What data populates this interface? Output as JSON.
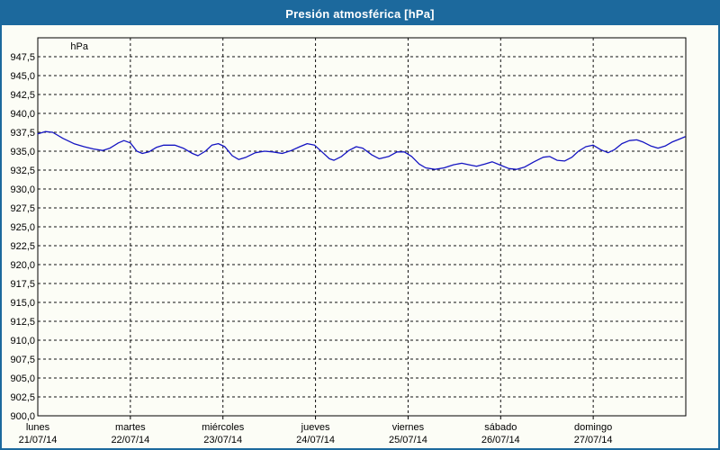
{
  "title_bar": {
    "text": "Presión atmosférica [hPa]",
    "bg_color": "#1c699d",
    "text_color": "#ffffff"
  },
  "colors": {
    "frame_border": "#1c699d",
    "plot_border": "#000000",
    "gridline": "#111111",
    "line": "#1414c2",
    "background": "#fcfdf6",
    "label_text": "#000000"
  },
  "chart_data": {
    "type": "line",
    "title": "Presión atmosférica [hPa]",
    "unit_label": "hPa",
    "ylabel": "hPa",
    "xlabel": "",
    "ylim": [
      900,
      950
    ],
    "ytick_step": 2.5,
    "ytick_labels": [
      "947,5",
      "945,0",
      "942,5",
      "940,0",
      "937,5",
      "935,0",
      "932,5",
      "930,0",
      "927,5",
      "925,0",
      "922,5",
      "920,0",
      "917,5",
      "915,0",
      "912,5",
      "910,0",
      "907,5",
      "905,0",
      "902,5",
      "900,0"
    ],
    "grid": "dashed, horizontal every 2.5 hPa and vertical at each midnight",
    "legend_position": "none",
    "x_range_days": [
      0,
      7
    ],
    "x_days": [
      {
        "name": "lunes",
        "date": "21/07/14"
      },
      {
        "name": "martes",
        "date": "22/07/14"
      },
      {
        "name": "miércoles",
        "date": "23/07/14"
      },
      {
        "name": "jueves",
        "date": "24/07/14"
      },
      {
        "name": "viernes",
        "date": "25/07/14"
      },
      {
        "name": "sábado",
        "date": "26/07/14"
      },
      {
        "name": "domingo",
        "date": "27/07/14"
      }
    ],
    "series": [
      {
        "name": "Presión atmosférica",
        "color": "#1414c2",
        "points": [
          [
            0.0,
            937.3
          ],
          [
            0.08,
            937.6
          ],
          [
            0.16,
            937.5
          ],
          [
            0.27,
            936.7
          ],
          [
            0.39,
            936.0
          ],
          [
            0.5,
            935.6
          ],
          [
            0.6,
            935.3
          ],
          [
            0.7,
            935.1
          ],
          [
            0.78,
            935.4
          ],
          [
            0.87,
            936.1
          ],
          [
            0.93,
            936.4
          ],
          [
            1.0,
            936.1
          ],
          [
            1.07,
            935.0
          ],
          [
            1.13,
            934.7
          ],
          [
            1.2,
            934.9
          ],
          [
            1.28,
            935.5
          ],
          [
            1.36,
            935.8
          ],
          [
            1.48,
            935.8
          ],
          [
            1.57,
            935.4
          ],
          [
            1.67,
            934.7
          ],
          [
            1.73,
            934.4
          ],
          [
            1.81,
            935.0
          ],
          [
            1.88,
            935.8
          ],
          [
            1.95,
            936.0
          ],
          [
            2.02,
            935.6
          ],
          [
            2.1,
            934.4
          ],
          [
            2.17,
            933.9
          ],
          [
            2.25,
            934.2
          ],
          [
            2.35,
            934.8
          ],
          [
            2.45,
            935.0
          ],
          [
            2.54,
            934.9
          ],
          [
            2.64,
            934.7
          ],
          [
            2.74,
            935.1
          ],
          [
            2.83,
            935.6
          ],
          [
            2.91,
            936.0
          ],
          [
            2.99,
            935.8
          ],
          [
            3.07,
            934.9
          ],
          [
            3.15,
            934.0
          ],
          [
            3.2,
            933.8
          ],
          [
            3.28,
            934.3
          ],
          [
            3.36,
            935.1
          ],
          [
            3.44,
            935.6
          ],
          [
            3.51,
            935.4
          ],
          [
            3.61,
            934.5
          ],
          [
            3.69,
            934.0
          ],
          [
            3.79,
            934.3
          ],
          [
            3.88,
            934.9
          ],
          [
            3.96,
            934.9
          ],
          [
            4.04,
            934.3
          ],
          [
            4.12,
            933.3
          ],
          [
            4.19,
            932.8
          ],
          [
            4.29,
            932.6
          ],
          [
            4.39,
            932.8
          ],
          [
            4.49,
            933.2
          ],
          [
            4.58,
            933.4
          ],
          [
            4.66,
            933.2
          ],
          [
            4.74,
            933.0
          ],
          [
            4.83,
            933.3
          ],
          [
            4.91,
            933.6
          ],
          [
            5.01,
            933.1
          ],
          [
            5.09,
            932.7
          ],
          [
            5.17,
            932.6
          ],
          [
            5.26,
            932.9
          ],
          [
            5.36,
            933.6
          ],
          [
            5.46,
            934.2
          ],
          [
            5.53,
            934.3
          ],
          [
            5.61,
            933.8
          ],
          [
            5.69,
            933.7
          ],
          [
            5.77,
            934.2
          ],
          [
            5.84,
            935.0
          ],
          [
            5.92,
            935.6
          ],
          [
            6.0,
            935.8
          ],
          [
            6.08,
            935.2
          ],
          [
            6.16,
            934.8
          ],
          [
            6.23,
            935.2
          ],
          [
            6.31,
            936.0
          ],
          [
            6.39,
            936.4
          ],
          [
            6.47,
            936.5
          ],
          [
            6.54,
            936.2
          ],
          [
            6.62,
            935.7
          ],
          [
            6.7,
            935.4
          ],
          [
            6.78,
            935.7
          ],
          [
            6.85,
            936.2
          ],
          [
            6.93,
            936.6
          ],
          [
            6.99,
            936.9
          ]
        ]
      }
    ]
  }
}
